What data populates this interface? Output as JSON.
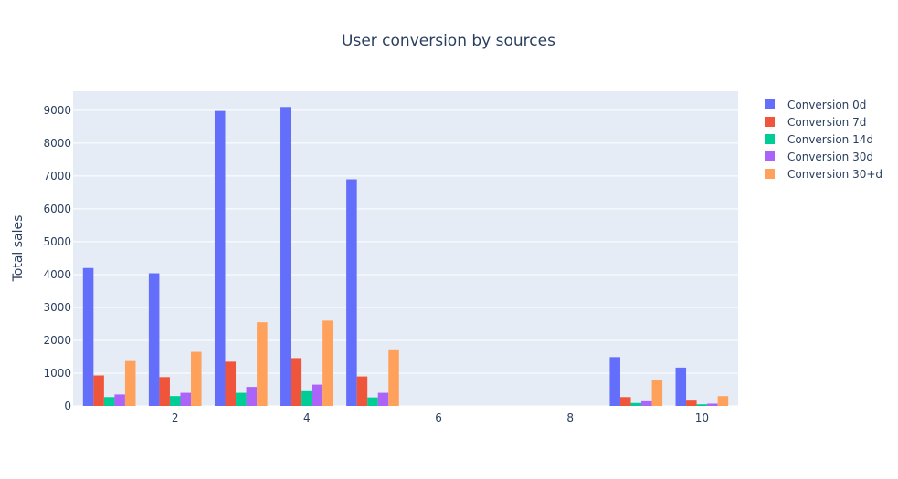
{
  "chart_data": {
    "type": "bar",
    "title": "User conversion by sources",
    "xlabel": "",
    "ylabel": "Total sales",
    "x": [
      1,
      2,
      3,
      4,
      5,
      6,
      7,
      8,
      9,
      10
    ],
    "x_ticks": [
      "2",
      "4",
      "6",
      "8",
      "10"
    ],
    "y_ticks": [
      "0",
      "1000",
      "2000",
      "3000",
      "4000",
      "5000",
      "6000",
      "7000",
      "8000",
      "9000"
    ],
    "xlim": [
      0.45,
      10.55
    ],
    "ylim": [
      0,
      9580
    ],
    "grid": true,
    "legend_position": "right",
    "colors": [
      "#636efa",
      "#EF553B",
      "#00cc96",
      "#ab63fa",
      "#FFA15A"
    ],
    "series": [
      {
        "name": "Conversion 0d",
        "values": [
          4200,
          4040,
          8980,
          9100,
          6900,
          0,
          0,
          0,
          1490,
          1170
        ]
      },
      {
        "name": "Conversion 7d",
        "values": [
          930,
          880,
          1350,
          1460,
          900,
          0,
          0,
          0,
          270,
          190
        ]
      },
      {
        "name": "Conversion 14d",
        "values": [
          270,
          300,
          400,
          450,
          260,
          0,
          0,
          0,
          90,
          50
        ]
      },
      {
        "name": "Conversion 30d",
        "values": [
          350,
          400,
          580,
          650,
          400,
          0,
          0,
          0,
          170,
          70
        ]
      },
      {
        "name": "Conversion 30+d",
        "values": [
          1370,
          1650,
          2550,
          2600,
          1700,
          0,
          0,
          0,
          780,
          300
        ]
      }
    ]
  }
}
